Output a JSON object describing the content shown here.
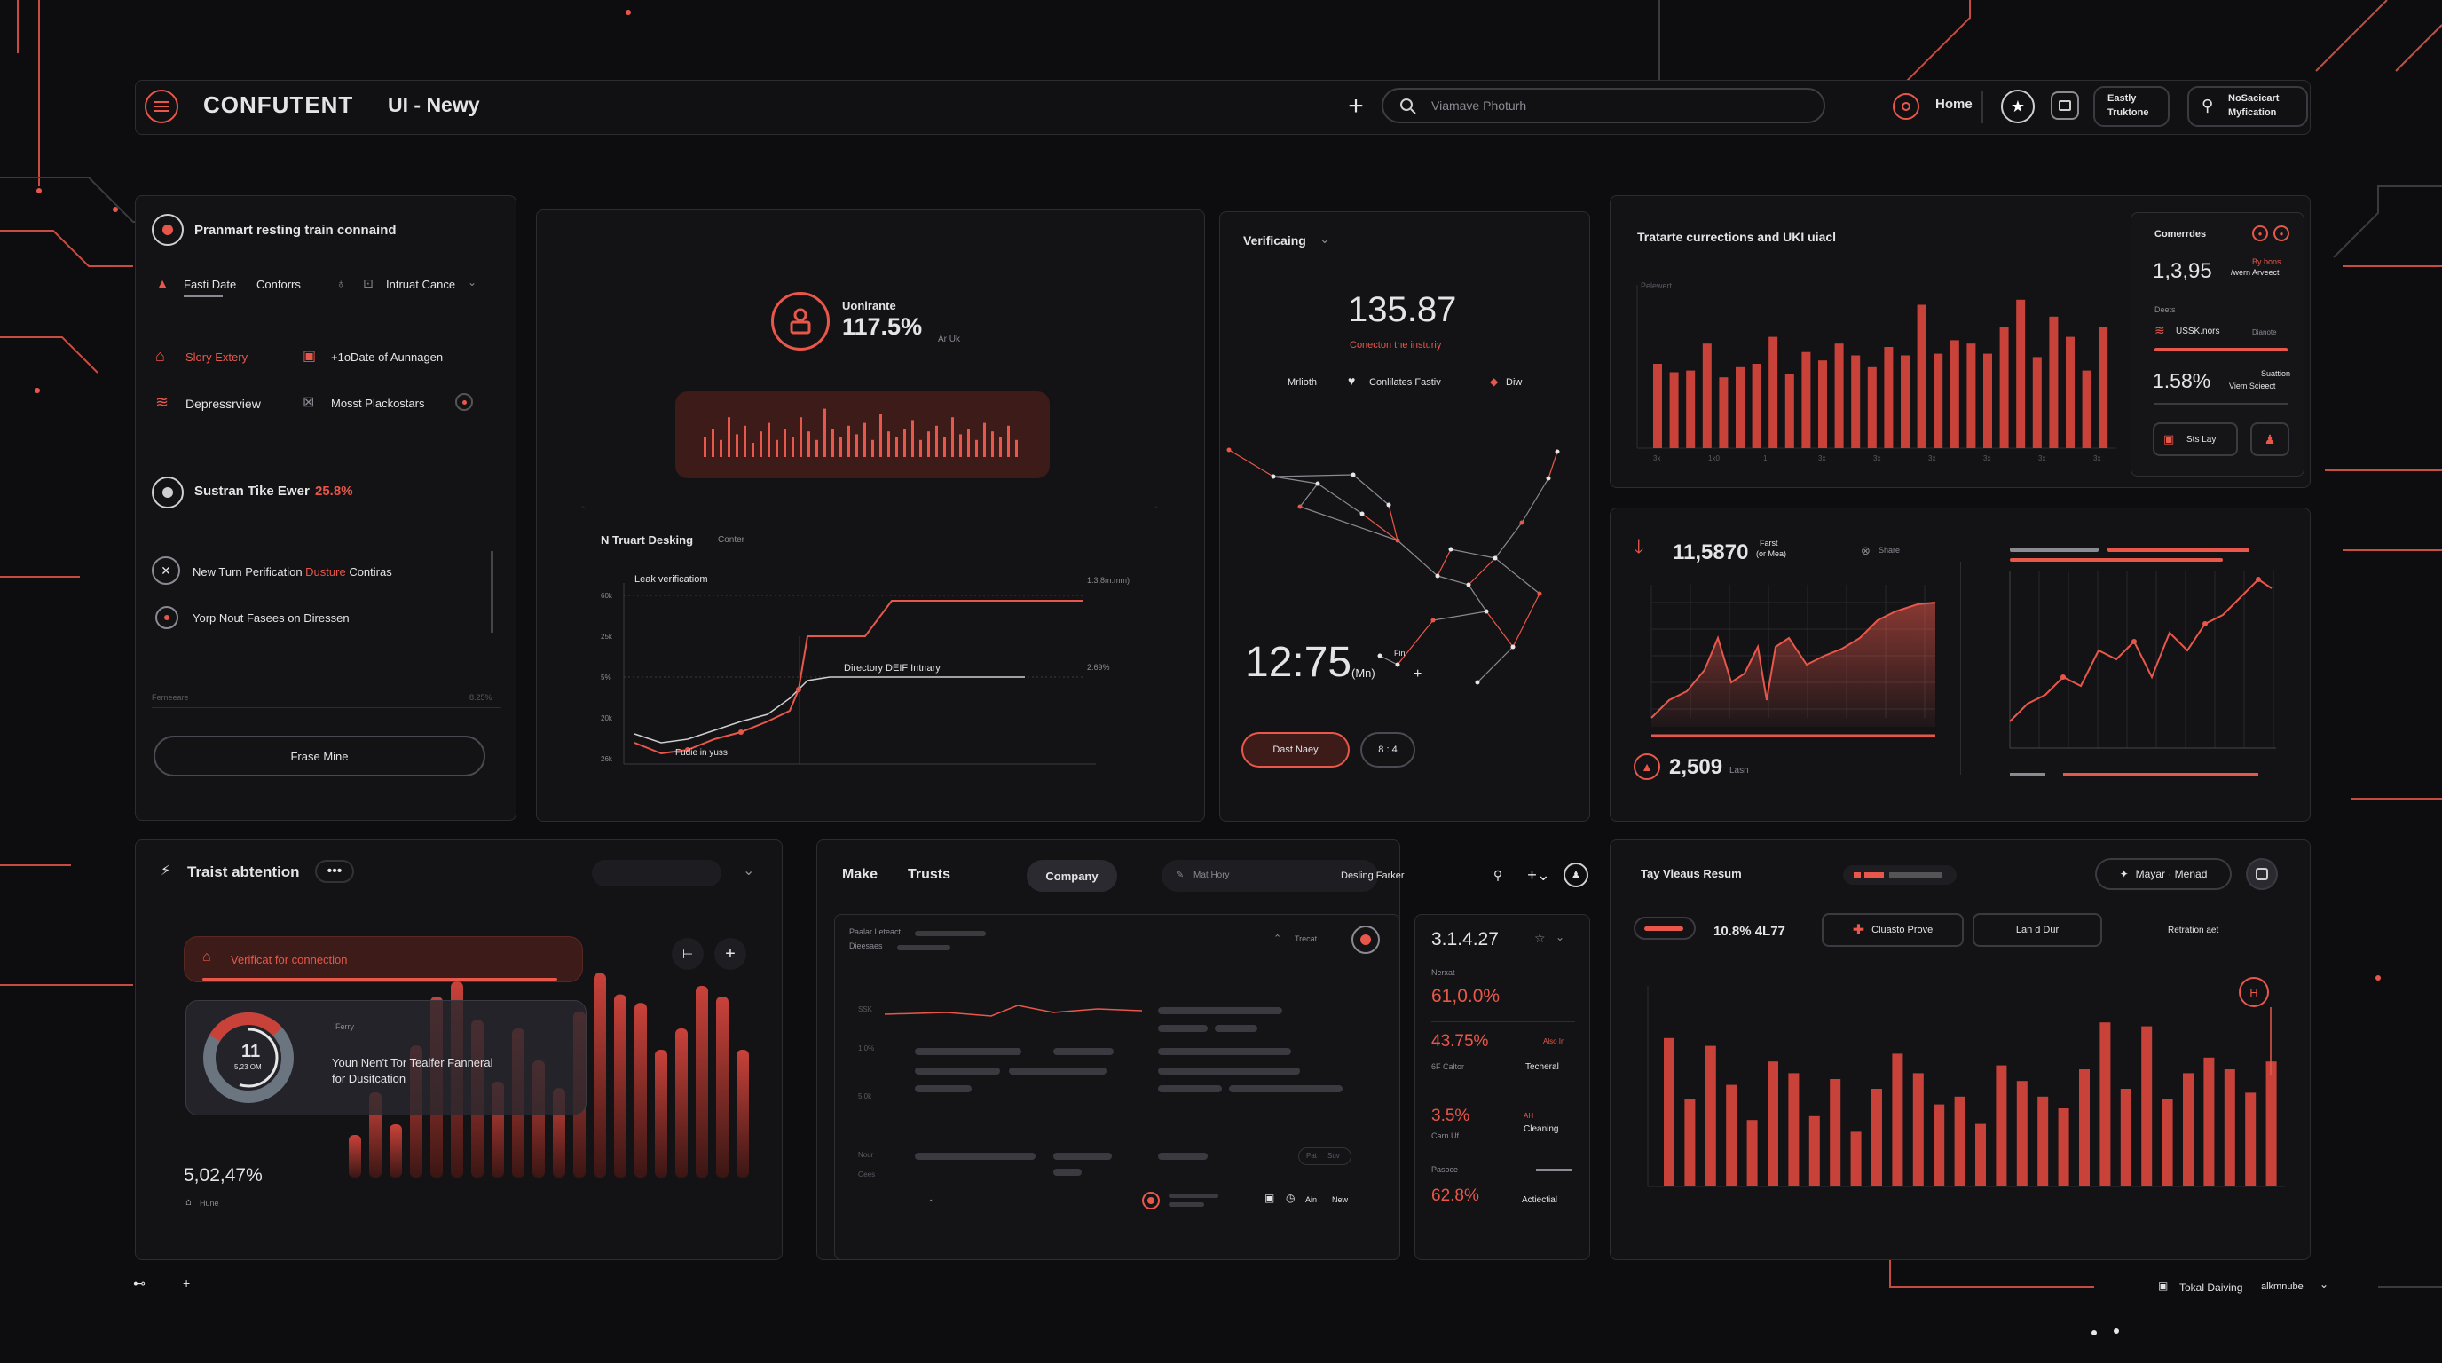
{
  "header": {
    "brand": "CONFUTENT",
    "app_title": "UI - Newy",
    "search_placeholder": "Viamave Photurh",
    "nav_home": "Home",
    "chip1_line1": "Eastly",
    "chip1_line2": "Truktone",
    "chip2_line1": "NoSacicart",
    "chip2_line2": "Myfication"
  },
  "left_panel": {
    "title": "Pranmart resting train connaind",
    "tabs": [
      "Fasti Date",
      "Conforrs"
    ],
    "tab_dropdown": "Intruat Cance",
    "item1": "Slory Extery",
    "item2": "+1oDate of Aunnagen",
    "item3": "Depressrview",
    "item4": "Mosst Plackostars",
    "status_label": "Sustran Tike Ewer",
    "status_value": "25.8%",
    "row1_prefix": "New Turn Perification ",
    "row1_highlight": "Dusture",
    "row1_suffix": " Contiras",
    "row2": "Yorp Nout Fasees on Diressen",
    "footer_left": "Ferneeare",
    "footer_right": "8.25%",
    "button": "Frase Mine"
  },
  "metric_panel": {
    "label": "Uonirante",
    "value": "117.5%",
    "unit": "Ar Uk",
    "chart_title": "N Truart Desking",
    "chart_filter": "Conter",
    "y_ticks": [
      "60k",
      "25k",
      "5%",
      "20k",
      "26k"
    ],
    "annotation_top": "Leak verificatiom",
    "annotation_mid": "Directory DEIF Intnary",
    "annotation_bottom": "Fudie in yuss",
    "right_label_top": "1.3,8m.mm)",
    "right_label_mid": "2.69%"
  },
  "verify_panel": {
    "title": "Verificaing",
    "value": "135.87",
    "subtitle": "Conecton the insturiy",
    "legend1": "Mrlioth",
    "legend2": "Conlilates Fastiv",
    "legend3": "Diw",
    "time_value": "12:75",
    "time_unit": "(Mn)",
    "time_small": "Fin",
    "button_primary": "Dast Naey",
    "button_secondary": "8 : 4"
  },
  "bars_panel": {
    "title": "Tratarte currections and UKI uiacl",
    "axis_label": "Pelewert",
    "x_ticks": [
      "3x",
      "1x0",
      "1",
      "3x",
      "3x",
      "3x",
      "3x",
      "3x",
      "3x"
    ]
  },
  "stats_panel": {
    "title": "Comerrdes",
    "value1": "1,3,95",
    "value1_note1": "By bons",
    "value1_note2": "/wern Arveect",
    "label_deets": "Deets",
    "wifi_label": "USSK.nors",
    "wifi_note": "Dianote",
    "value2": "1.58%",
    "value2_note1": "Suattion",
    "value2_note2": "Viem Scieect",
    "button": "Sts Lay"
  },
  "trend_panel": {
    "value_top": "11,5870",
    "value_top_note1": "Farst",
    "value_top_note2": "(or Mea)",
    "share": "Share",
    "value_bottom": "2,509",
    "value_bottom_unit": "Lasn"
  },
  "attention_panel": {
    "title": "Traist abtention",
    "alert": "Verificat for connection",
    "donut_value": "11",
    "donut_unit": "5,23 OM",
    "card_small": "Ferry",
    "card_line1": "Youn Nen't Tor Tealfer Fanneral",
    "card_line2": "for Dusitcation",
    "stat": "5,02,47%",
    "stat_note": "Hune"
  },
  "table_panel": {
    "tab1": "Make",
    "tab2": "Trusts",
    "tab_active": "Company",
    "search_text": "Mat Hory",
    "search_right": "Desling Farker",
    "sub_title1": "Paalar Leteact",
    "sub_title2": "Dieesaes",
    "tracat": "Trecat",
    "row_labels": [
      "SSK",
      "1.0%",
      "5.0k",
      "Nour",
      "Oees"
    ],
    "footer_a": "Ain",
    "footer_b": "New",
    "footer_btn": "Pat",
    "footer_btn2": "Suv"
  },
  "mini_stats": {
    "value": "3.1.4.27",
    "label1": "Nerxat",
    "value1": "61,0.0%",
    "value2": "43.75%",
    "value2_tag": "Also In",
    "value2_caption": "6F Caltor",
    "value2_right": "Techeral",
    "value3": "3.5%",
    "value3_caption": "Carn Uf",
    "value3_tag": "AH",
    "value3_right": "Cleaning",
    "label4": "Pasoce",
    "value4": "62.8%",
    "value4_right": "Actiectial"
  },
  "bottom_right": {
    "title": "Tay Vieaus Resum",
    "button_main": "Mayar · Menad",
    "metric": "10.8% 4L77",
    "btn1": "Cluasto Prove",
    "btn2": "Lan d Dur",
    "right_label": "Retration aet"
  },
  "footer": {
    "label": "Tokal Daiving",
    "dropdown": "alkmnube"
  }
}
